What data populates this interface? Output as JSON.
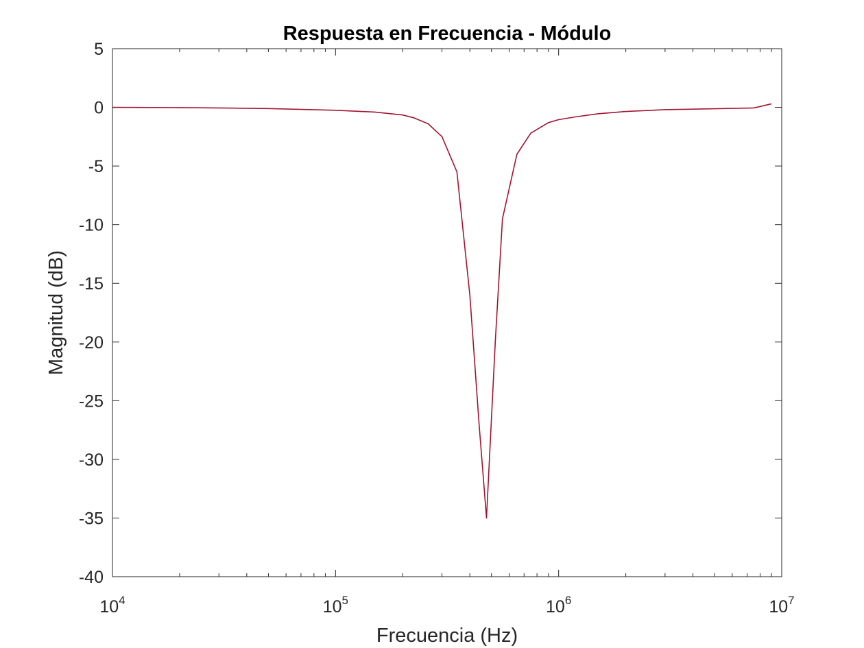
{
  "chart_data": {
    "type": "line",
    "title": "Respuesta en Frecuencia - Módulo",
    "xlabel": "Frecuencia (Hz)",
    "ylabel": "Magnitud (dB)",
    "xscale": "log",
    "xlim": [
      10000,
      10000000
    ],
    "ylim": [
      -40,
      5
    ],
    "grid": false,
    "box": true,
    "x_ticks": [
      {
        "base": "10",
        "exp": "4",
        "value": 10000
      },
      {
        "base": "10",
        "exp": "5",
        "value": 100000
      },
      {
        "base": "10",
        "exp": "6",
        "value": 1000000
      },
      {
        "base": "10",
        "exp": "7",
        "value": 10000000
      }
    ],
    "y_ticks": [
      {
        "label": "5",
        "value": 5
      },
      {
        "label": "0",
        "value": 0
      },
      {
        "label": "-5",
        "value": -5
      },
      {
        "label": "-10",
        "value": -10
      },
      {
        "label": "-15",
        "value": -15
      },
      {
        "label": "-20",
        "value": -20
      },
      {
        "label": "-25",
        "value": -25
      },
      {
        "label": "-30",
        "value": -30
      },
      {
        "label": "-35",
        "value": -35
      },
      {
        "label": "-40",
        "value": -40
      }
    ],
    "series": [
      {
        "color": "#A2142F",
        "x": [
          10000,
          20000,
          30000,
          50000,
          100000,
          150000,
          200000,
          225000,
          260000,
          300000,
          350000,
          400000,
          440000,
          475000,
          520000,
          560000,
          650000,
          750000,
          900000,
          1000000,
          1200000,
          1500000,
          2000000,
          3000000,
          5000000,
          7500000,
          9000000
        ],
        "y": [
          0.0,
          -0.02,
          -0.05,
          -0.1,
          -0.25,
          -0.4,
          -0.65,
          -0.9,
          -1.4,
          -2.5,
          -5.5,
          -16,
          -27,
          -35.0,
          -20,
          -9.5,
          -4.0,
          -2.2,
          -1.3,
          -1.05,
          -0.8,
          -0.55,
          -0.35,
          -0.2,
          -0.12,
          -0.05,
          0.3
        ]
      }
    ]
  }
}
